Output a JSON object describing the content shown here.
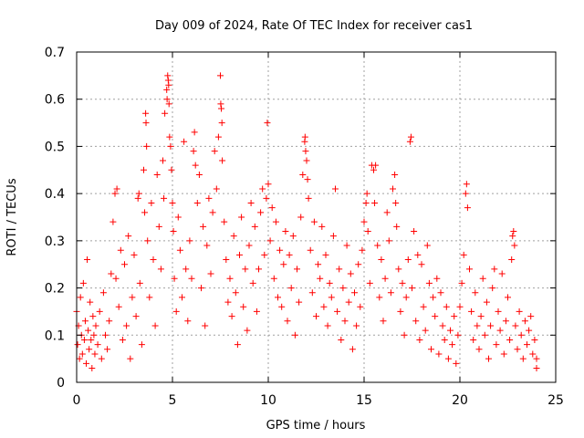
{
  "chart_data": {
    "type": "scatter",
    "title": "Day 009 of 2024, Rate Of TEC Index for receiver cas1",
    "xlabel": "GPS time / hours",
    "ylabel": "ROTI / TECUs",
    "xlim": [
      0,
      25
    ],
    "ylim": [
      0,
      0.7
    ],
    "xticks": [
      0,
      5,
      10,
      15,
      20,
      25
    ],
    "xtick_labels": [
      "0",
      "5",
      "10",
      "15",
      "20",
      "25"
    ],
    "yticks": [
      0,
      0.1,
      0.2,
      0.3,
      0.4,
      0.5,
      0.6,
      0.7
    ],
    "ytick_labels": [
      "0",
      "0.1",
      "0.2",
      "0.3",
      "0.4",
      "0.5",
      "0.6",
      "0.7"
    ],
    "grid": true,
    "marker": "+",
    "series": [
      {
        "name": "ROTI",
        "color": "#ff0000",
        "points": [
          [
            0.0,
            0.15
          ],
          [
            0.05,
            0.08
          ],
          [
            0.1,
            0.12
          ],
          [
            0.15,
            0.05
          ],
          [
            0.2,
            0.18
          ],
          [
            0.25,
            0.1
          ],
          [
            0.3,
            0.06
          ],
          [
            0.35,
            0.21
          ],
          [
            0.4,
            0.09
          ],
          [
            0.45,
            0.13
          ],
          [
            0.5,
            0.04
          ],
          [
            0.55,
            0.26
          ],
          [
            0.6,
            0.11
          ],
          [
            0.65,
            0.07
          ],
          [
            0.7,
            0.17
          ],
          [
            0.75,
            0.09
          ],
          [
            0.8,
            0.03
          ],
          [
            0.85,
            0.14
          ],
          [
            0.9,
            0.1
          ],
          [
            0.95,
            0.06
          ],
          [
            1.0,
            0.12
          ],
          [
            1.1,
            0.08
          ],
          [
            1.2,
            0.15
          ],
          [
            1.3,
            0.05
          ],
          [
            1.4,
            0.19
          ],
          [
            1.5,
            0.1
          ],
          [
            1.6,
            0.07
          ],
          [
            1.7,
            0.13
          ],
          [
            1.8,
            0.23
          ],
          [
            1.9,
            0.34
          ],
          [
            2.0,
            0.4
          ],
          [
            2.05,
            0.22
          ],
          [
            2.1,
            0.41
          ],
          [
            2.2,
            0.16
          ],
          [
            2.3,
            0.28
          ],
          [
            2.4,
            0.09
          ],
          [
            2.5,
            0.25
          ],
          [
            2.6,
            0.12
          ],
          [
            2.7,
            0.31
          ],
          [
            2.8,
            0.05
          ],
          [
            2.9,
            0.18
          ],
          [
            3.0,
            0.27
          ],
          [
            3.1,
            0.14
          ],
          [
            3.2,
            0.39
          ],
          [
            3.25,
            0.4
          ],
          [
            3.3,
            0.21
          ],
          [
            3.4,
            0.08
          ],
          [
            3.5,
            0.45
          ],
          [
            3.55,
            0.36
          ],
          [
            3.6,
            0.57
          ],
          [
            3.62,
            0.55
          ],
          [
            3.65,
            0.5
          ],
          [
            3.7,
            0.3
          ],
          [
            3.8,
            0.18
          ],
          [
            3.9,
            0.38
          ],
          [
            4.0,
            0.26
          ],
          [
            4.1,
            0.12
          ],
          [
            4.2,
            0.44
          ],
          [
            4.3,
            0.33
          ],
          [
            4.4,
            0.24
          ],
          [
            4.5,
            0.47
          ],
          [
            4.55,
            0.39
          ],
          [
            4.6,
            0.57
          ],
          [
            4.7,
            0.62
          ],
          [
            4.72,
            0.6
          ],
          [
            4.75,
            0.65
          ],
          [
            4.78,
            0.64
          ],
          [
            4.8,
            0.63
          ],
          [
            4.82,
            0.59
          ],
          [
            4.85,
            0.52
          ],
          [
            4.9,
            0.5
          ],
          [
            4.95,
            0.45
          ],
          [
            5.0,
            0.38
          ],
          [
            5.05,
            0.32
          ],
          [
            5.1,
            0.22
          ],
          [
            5.2,
            0.15
          ],
          [
            5.3,
            0.35
          ],
          [
            5.4,
            0.28
          ],
          [
            5.5,
            0.18
          ],
          [
            5.6,
            0.51
          ],
          [
            5.7,
            0.24
          ],
          [
            5.8,
            0.13
          ],
          [
            5.9,
            0.3
          ],
          [
            6.0,
            0.22
          ],
          [
            6.1,
            0.49
          ],
          [
            6.15,
            0.53
          ],
          [
            6.2,
            0.46
          ],
          [
            6.3,
            0.38
          ],
          [
            6.4,
            0.44
          ],
          [
            6.5,
            0.2
          ],
          [
            6.6,
            0.33
          ],
          [
            6.7,
            0.12
          ],
          [
            6.8,
            0.29
          ],
          [
            6.9,
            0.39
          ],
          [
            7.0,
            0.23
          ],
          [
            7.1,
            0.36
          ],
          [
            7.2,
            0.49
          ],
          [
            7.3,
            0.41
          ],
          [
            7.4,
            0.52
          ],
          [
            7.5,
            0.65
          ],
          [
            7.52,
            0.59
          ],
          [
            7.55,
            0.58
          ],
          [
            7.58,
            0.55
          ],
          [
            7.6,
            0.47
          ],
          [
            7.7,
            0.34
          ],
          [
            7.8,
            0.26
          ],
          [
            7.9,
            0.17
          ],
          [
            8.0,
            0.22
          ],
          [
            8.1,
            0.14
          ],
          [
            8.2,
            0.31
          ],
          [
            8.3,
            0.19
          ],
          [
            8.4,
            0.08
          ],
          [
            8.5,
            0.27
          ],
          [
            8.6,
            0.35
          ],
          [
            8.7,
            0.16
          ],
          [
            8.8,
            0.24
          ],
          [
            8.9,
            0.11
          ],
          [
            9.0,
            0.29
          ],
          [
            9.1,
            0.38
          ],
          [
            9.2,
            0.21
          ],
          [
            9.3,
            0.33
          ],
          [
            9.4,
            0.15
          ],
          [
            9.5,
            0.24
          ],
          [
            9.6,
            0.36
          ],
          [
            9.7,
            0.41
          ],
          [
            9.8,
            0.27
          ],
          [
            9.9,
            0.39
          ],
          [
            9.95,
            0.55
          ],
          [
            10.0,
            0.42
          ],
          [
            10.1,
            0.3
          ],
          [
            10.2,
            0.37
          ],
          [
            10.3,
            0.22
          ],
          [
            10.4,
            0.34
          ],
          [
            10.5,
            0.18
          ],
          [
            10.6,
            0.28
          ],
          [
            10.7,
            0.16
          ],
          [
            10.8,
            0.25
          ],
          [
            10.9,
            0.32
          ],
          [
            11.0,
            0.13
          ],
          [
            11.1,
            0.27
          ],
          [
            11.2,
            0.2
          ],
          [
            11.3,
            0.31
          ],
          [
            11.4,
            0.1
          ],
          [
            11.5,
            0.24
          ],
          [
            11.6,
            0.17
          ],
          [
            11.7,
            0.35
          ],
          [
            11.8,
            0.44
          ],
          [
            11.9,
            0.51
          ],
          [
            11.92,
            0.52
          ],
          [
            11.95,
            0.49
          ],
          [
            12.0,
            0.47
          ],
          [
            12.05,
            0.43
          ],
          [
            12.1,
            0.39
          ],
          [
            12.2,
            0.28
          ],
          [
            12.3,
            0.19
          ],
          [
            12.4,
            0.34
          ],
          [
            12.5,
            0.14
          ],
          [
            12.6,
            0.25
          ],
          [
            12.7,
            0.22
          ],
          [
            12.8,
            0.33
          ],
          [
            12.9,
            0.16
          ],
          [
            13.0,
            0.27
          ],
          [
            13.1,
            0.12
          ],
          [
            13.2,
            0.21
          ],
          [
            13.3,
            0.18
          ],
          [
            13.4,
            0.31
          ],
          [
            13.5,
            0.41
          ],
          [
            13.6,
            0.15
          ],
          [
            13.7,
            0.24
          ],
          [
            13.8,
            0.09
          ],
          [
            13.9,
            0.2
          ],
          [
            14.0,
            0.13
          ],
          [
            14.1,
            0.29
          ],
          [
            14.2,
            0.17
          ],
          [
            14.3,
            0.23
          ],
          [
            14.4,
            0.07
          ],
          [
            14.5,
            0.19
          ],
          [
            14.6,
            0.12
          ],
          [
            14.7,
            0.25
          ],
          [
            14.8,
            0.16
          ],
          [
            14.9,
            0.28
          ],
          [
            15.0,
            0.34
          ],
          [
            15.1,
            0.38
          ],
          [
            15.15,
            0.4
          ],
          [
            15.2,
            0.32
          ],
          [
            15.3,
            0.21
          ],
          [
            15.4,
            0.46
          ],
          [
            15.5,
            0.45
          ],
          [
            15.55,
            0.38
          ],
          [
            15.6,
            0.46
          ],
          [
            15.7,
            0.29
          ],
          [
            15.8,
            0.18
          ],
          [
            15.9,
            0.26
          ],
          [
            16.0,
            0.13
          ],
          [
            16.1,
            0.22
          ],
          [
            16.2,
            0.36
          ],
          [
            16.3,
            0.3
          ],
          [
            16.4,
            0.19
          ],
          [
            16.5,
            0.41
          ],
          [
            16.6,
            0.44
          ],
          [
            16.65,
            0.38
          ],
          [
            16.7,
            0.33
          ],
          [
            16.8,
            0.24
          ],
          [
            16.9,
            0.15
          ],
          [
            17.0,
            0.21
          ],
          [
            17.1,
            0.1
          ],
          [
            17.2,
            0.18
          ],
          [
            17.3,
            0.26
          ],
          [
            17.4,
            0.51
          ],
          [
            17.45,
            0.52
          ],
          [
            17.5,
            0.2
          ],
          [
            17.6,
            0.32
          ],
          [
            17.7,
            0.13
          ],
          [
            17.8,
            0.27
          ],
          [
            17.9,
            0.09
          ],
          [
            18.0,
            0.25
          ],
          [
            18.1,
            0.16
          ],
          [
            18.2,
            0.11
          ],
          [
            18.3,
            0.29
          ],
          [
            18.4,
            0.21
          ],
          [
            18.5,
            0.07
          ],
          [
            18.6,
            0.18
          ],
          [
            18.7,
            0.14
          ],
          [
            18.8,
            0.22
          ],
          [
            18.9,
            0.06
          ],
          [
            19.0,
            0.19
          ],
          [
            19.1,
            0.12
          ],
          [
            19.2,
            0.09
          ],
          [
            19.3,
            0.16
          ],
          [
            19.4,
            0.05
          ],
          [
            19.5,
            0.11
          ],
          [
            19.6,
            0.08
          ],
          [
            19.7,
            0.14
          ],
          [
            19.8,
            0.04
          ],
          [
            19.9,
            0.1
          ],
          [
            20.0,
            0.16
          ],
          [
            20.1,
            0.21
          ],
          [
            20.2,
            0.27
          ],
          [
            20.3,
            0.4
          ],
          [
            20.35,
            0.42
          ],
          [
            20.4,
            0.37
          ],
          [
            20.5,
            0.24
          ],
          [
            20.6,
            0.15
          ],
          [
            20.7,
            0.09
          ],
          [
            20.8,
            0.19
          ],
          [
            20.9,
            0.12
          ],
          [
            21.0,
            0.07
          ],
          [
            21.1,
            0.14
          ],
          [
            21.2,
            0.22
          ],
          [
            21.3,
            0.1
          ],
          [
            21.4,
            0.17
          ],
          [
            21.5,
            0.05
          ],
          [
            21.6,
            0.12
          ],
          [
            21.7,
            0.2
          ],
          [
            21.8,
            0.24
          ],
          [
            21.9,
            0.08
          ],
          [
            22.0,
            0.15
          ],
          [
            22.1,
            0.11
          ],
          [
            22.2,
            0.23
          ],
          [
            22.3,
            0.06
          ],
          [
            22.4,
            0.13
          ],
          [
            22.5,
            0.18
          ],
          [
            22.6,
            0.09
          ],
          [
            22.7,
            0.26
          ],
          [
            22.75,
            0.31
          ],
          [
            22.8,
            0.32
          ],
          [
            22.85,
            0.29
          ],
          [
            22.9,
            0.12
          ],
          [
            23.0,
            0.07
          ],
          [
            23.1,
            0.15
          ],
          [
            23.2,
            0.1
          ],
          [
            23.3,
            0.05
          ],
          [
            23.4,
            0.13
          ],
          [
            23.5,
            0.08
          ],
          [
            23.6,
            0.11
          ],
          [
            23.7,
            0.14
          ],
          [
            23.8,
            0.06
          ],
          [
            23.9,
            0.09
          ],
          [
            24.0,
            0.05
          ],
          [
            24.0,
            0.03
          ]
        ]
      }
    ]
  }
}
